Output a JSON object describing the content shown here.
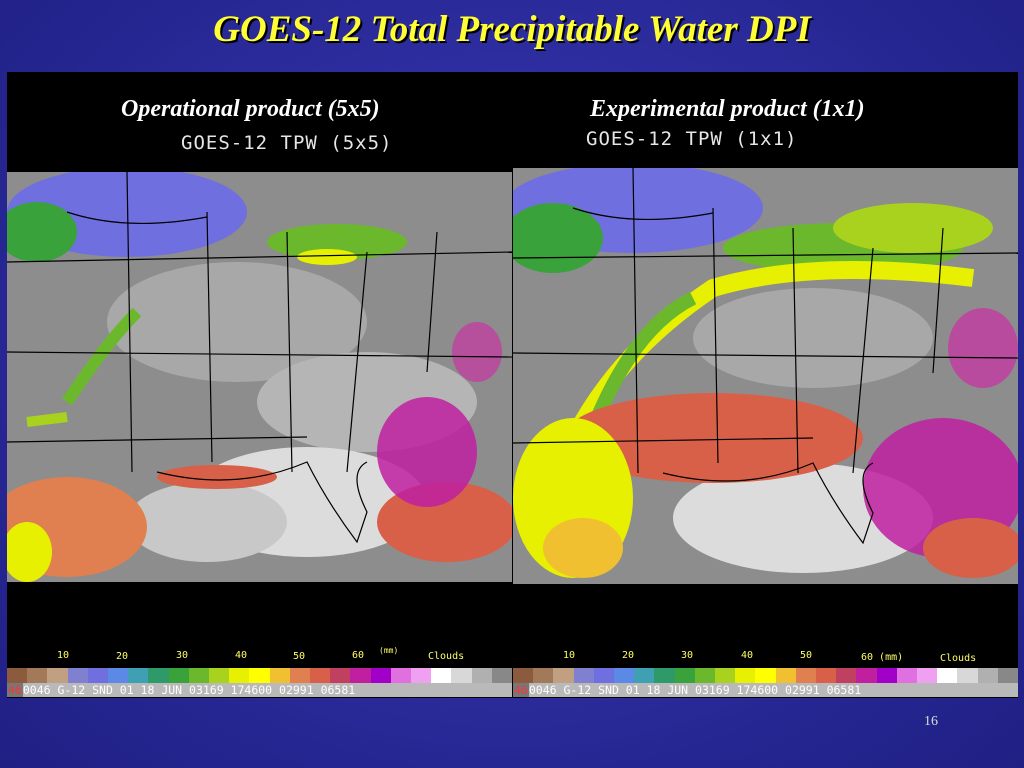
{
  "slide": {
    "title": "GOES-12 Total Precipitable Water DPI",
    "page_number": "16"
  },
  "panels": [
    {
      "subtitle": "Operational product (5x5)",
      "image_label": "GOES-12 TPW (5x5)",
      "scale_ticks": [
        "10",
        "20",
        "30",
        "40",
        "50",
        "60",
        "(mm)",
        "Clouds"
      ],
      "info_index": "46",
      "info_text": "0046 G-12 SND  01 18 JUN 03169 174600 02991 06581"
    },
    {
      "subtitle": "Experimental product (1x1)",
      "image_label": "GOES-12 TPW (1x1)",
      "scale_ticks": [
        "10",
        "20",
        "30",
        "40",
        "50",
        "60 (mm)",
        "Clouds"
      ],
      "info_index": "46",
      "info_text": "0046 G-12 SND  01 18 JUN 03169 174600 02991 06581"
    }
  ],
  "colorscale": [
    "#8c5a3c",
    "#a27a5a",
    "#c0a080",
    "#8080d0",
    "#6f6fe0",
    "#5a8ae6",
    "#3fa0b4",
    "#2e9a6a",
    "#3aa23a",
    "#6cb82c",
    "#a8d21e",
    "#e6f000",
    "#ffff00",
    "#f0c030",
    "#e08050",
    "#d86048",
    "#c04060",
    "#c020a0",
    "#a000c8",
    "#e070e0",
    "#f0a0f0",
    "#ffffff",
    "#d8d8d8",
    "#b0b0b0",
    "#888888"
  ]
}
